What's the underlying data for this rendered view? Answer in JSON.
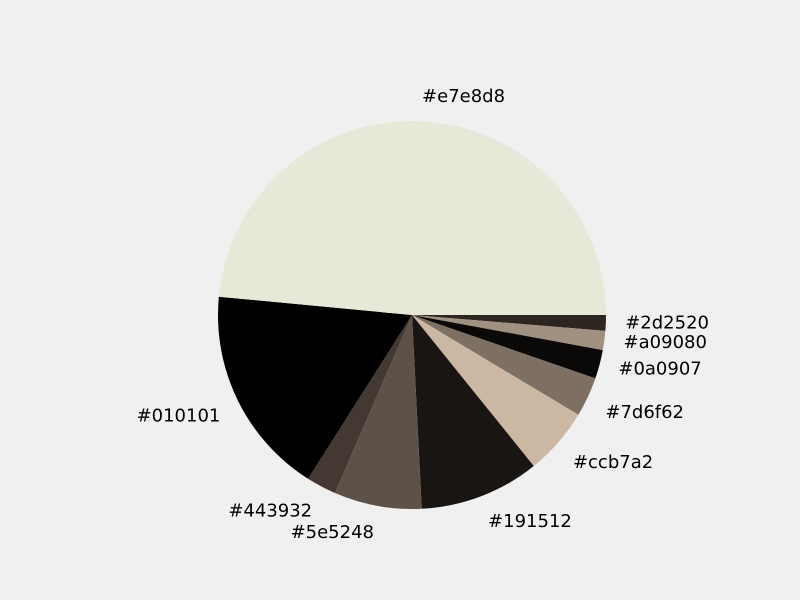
{
  "chart_data": {
    "type": "pie",
    "title": "",
    "start_angle_deg": 0,
    "direction": "clockwise",
    "labels": [
      "#2d2520",
      "#a09080",
      "#0a0907",
      "#7d6f62",
      "#ccb7a2",
      "#191512",
      "#5e5248",
      "#443932",
      "#010101",
      "#e7e8d8"
    ],
    "values": [
      1.3,
      1.6,
      2.4,
      3.3,
      5.6,
      10.0,
      7.3,
      2.5,
      17.5,
      48.5
    ],
    "colors": [
      "#2d2520",
      "#a09080",
      "#0a0907",
      "#7d6f62",
      "#ccb7a2",
      "#191512",
      "#5e5248",
      "#443932",
      "#010101",
      "#e7e8d8"
    ],
    "legend": "none"
  }
}
